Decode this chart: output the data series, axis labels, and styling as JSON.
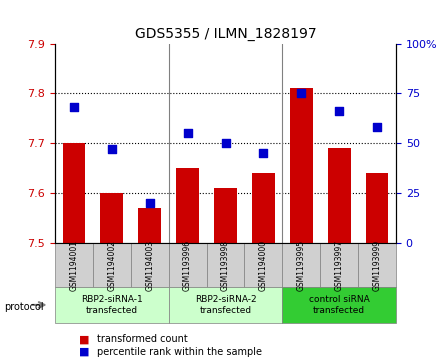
{
  "title": "GDS5355 / ILMN_1828197",
  "categories": [
    "GSM1194001",
    "GSM1194002",
    "GSM1194003",
    "GSM1193996",
    "GSM1193998",
    "GSM1194000",
    "GSM1193995",
    "GSM1193997",
    "GSM1193999"
  ],
  "bar_values": [
    7.7,
    7.6,
    7.57,
    7.65,
    7.61,
    7.64,
    7.81,
    7.69,
    7.64
  ],
  "dot_values": [
    68,
    47,
    20,
    55,
    50,
    45,
    75,
    66,
    58
  ],
  "ylim_left": [
    7.5,
    7.9
  ],
  "ylim_right": [
    0,
    100
  ],
  "yticks_left": [
    7.5,
    7.6,
    7.7,
    7.8,
    7.9
  ],
  "yticks_right": [
    0,
    25,
    50,
    75,
    100
  ],
  "bar_color": "#cc0000",
  "dot_color": "#0000cc",
  "bar_width": 0.6,
  "groups": [
    {
      "label": "RBP2-siRNA-1\ntransfected",
      "start": 0,
      "end": 3,
      "color": "#ccffcc"
    },
    {
      "label": "RBP2-siRNA-2\ntransfected",
      "start": 3,
      "end": 6,
      "color": "#ccffcc"
    },
    {
      "label": "control siRNA\ntransfected",
      "start": 6,
      "end": 9,
      "color": "#33cc33"
    }
  ],
  "protocol_label": "protocol",
  "legend_bar_label": "transformed count",
  "legend_dot_label": "percentile rank within the sample",
  "grid_color": "#000000",
  "bg_color": "#f0f0f0",
  "plot_bg": "#ffffff"
}
